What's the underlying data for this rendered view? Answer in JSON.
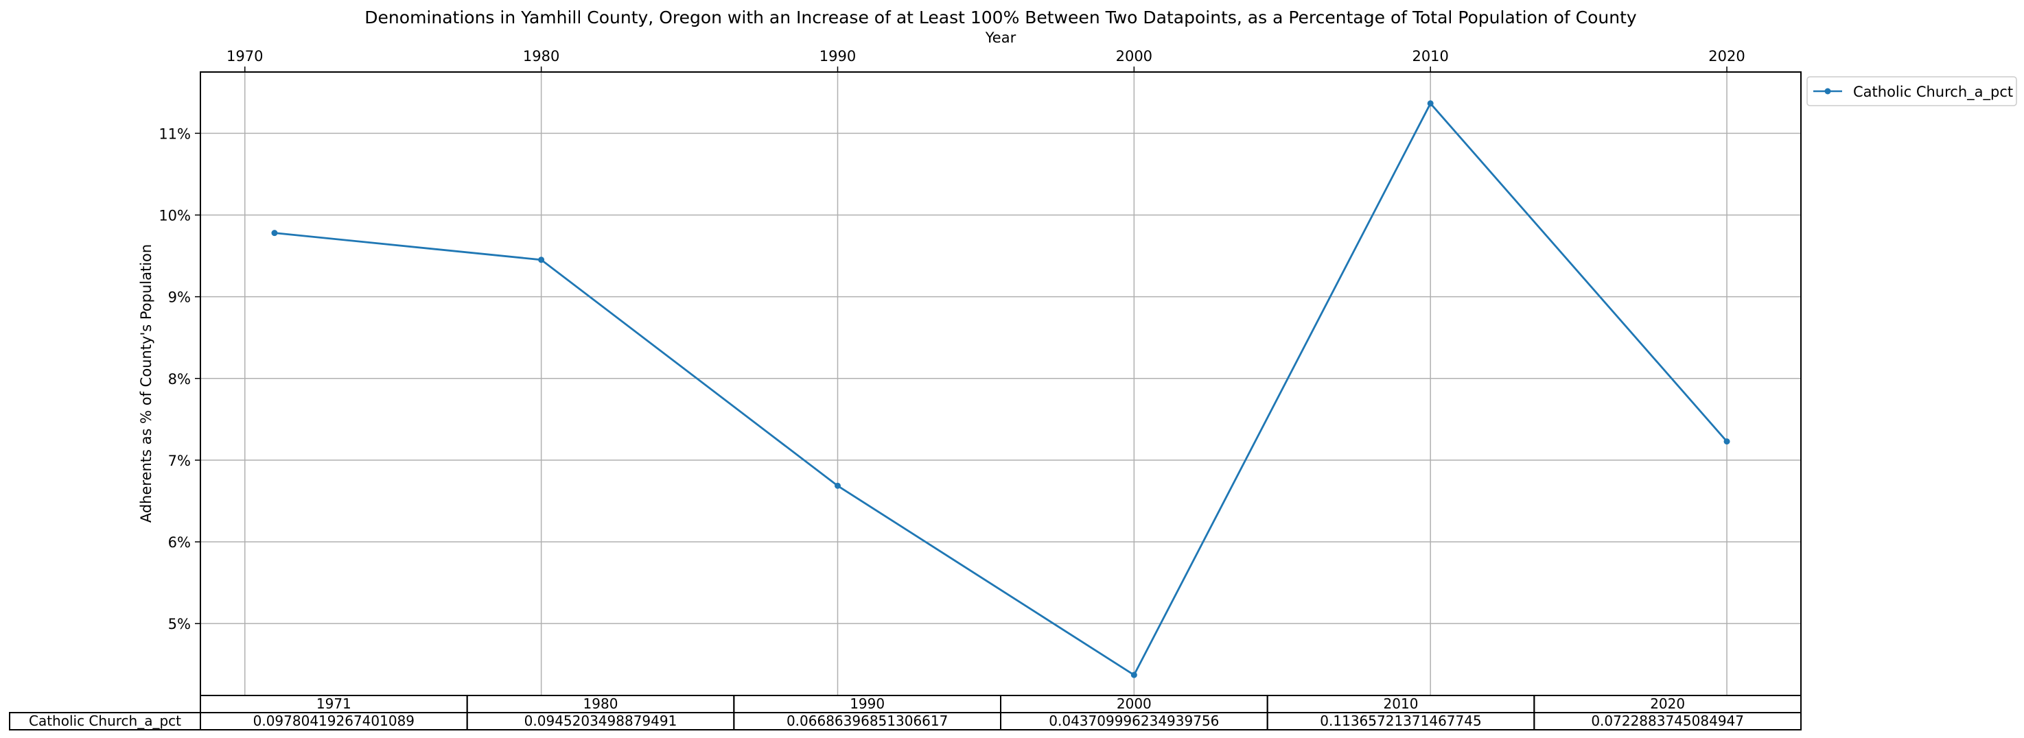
{
  "chart_data": {
    "type": "line",
    "title": "Denominations in Yamhill County, Oregon with an Increase of at Least 100% Between Two Datapoints, as a Percentage of Total Population of County",
    "xlabel": "Year",
    "ylabel": "Adherents as % of County's Population",
    "x_ticks": [
      "1970",
      "1980",
      "1990",
      "2000",
      "2010",
      "2020"
    ],
    "y_ticks": [
      "5%",
      "6%",
      "7%",
      "8%",
      "9%",
      "10%",
      "11%"
    ],
    "xlim": [
      1968.5,
      2022.5
    ],
    "ylim": [
      0.0412,
      0.1175
    ],
    "grid": true,
    "legend_position": "outside-top-right",
    "series": [
      {
        "name": "Catholic Church_a_pct",
        "color": "#1f77b4",
        "x": [
          1971,
          1980,
          1990,
          2000,
          2010,
          2020
        ],
        "y": [
          0.09780419267401089,
          0.0945203498879491,
          0.06686396851306617,
          0.043709996234939756,
          0.11365721371467745,
          0.0722883745084947
        ]
      }
    ],
    "table": {
      "columns": [
        "1971",
        "1980",
        "1990",
        "2000",
        "2010",
        "2020"
      ],
      "row_label": "Catholic Church_a_pct",
      "cells": [
        "0.09780419267401089",
        "0.0945203498879491",
        "0.06686396851306617",
        "0.043709996234939756",
        "0.11365721371467745",
        "0.0722883745084947"
      ]
    }
  }
}
